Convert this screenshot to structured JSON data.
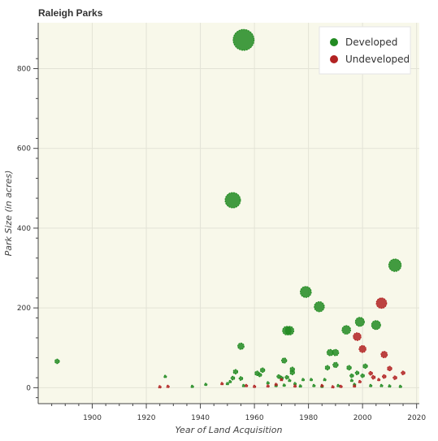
{
  "chart_data": {
    "type": "scatter",
    "title": "Raleigh Parks",
    "xlabel": "Year of Land Acquisition",
    "ylabel": "Park Size (in acres)",
    "xlim": [
      1880,
      2021
    ],
    "ylim": [
      -40,
      915
    ],
    "x_ticks": [
      1900,
      1920,
      1940,
      1960,
      1980,
      2000,
      2020
    ],
    "y_ticks": [
      0,
      200,
      400,
      600,
      800
    ],
    "grid": true,
    "legend_position": "top-right",
    "colors": {
      "Developed": "#228b22",
      "Undeveloped": "#b22222",
      "background": "#f8f8ea"
    },
    "series": [
      {
        "name": "Developed",
        "points": [
          [
            1887,
            66
          ],
          [
            1927,
            28
          ],
          [
            1937,
            3
          ],
          [
            1942,
            8
          ],
          [
            1950,
            10
          ],
          [
            1951,
            15
          ],
          [
            1952,
            470
          ],
          [
            1952,
            24
          ],
          [
            1953,
            40
          ],
          [
            1955,
            104
          ],
          [
            1955,
            23
          ],
          [
            1956,
            872
          ],
          [
            1956,
            5
          ],
          [
            1961,
            36
          ],
          [
            1962,
            32
          ],
          [
            1963,
            44
          ],
          [
            1965,
            12
          ],
          [
            1968,
            5
          ],
          [
            1969,
            28
          ],
          [
            1970,
            24
          ],
          [
            1971,
            68
          ],
          [
            1971,
            6
          ],
          [
            1972,
            143
          ],
          [
            1972,
            26
          ],
          [
            1973,
            143
          ],
          [
            1973,
            18
          ],
          [
            1974,
            46
          ],
          [
            1974,
            38
          ],
          [
            1975,
            10
          ],
          [
            1977,
            4
          ],
          [
            1978,
            20
          ],
          [
            1979,
            240
          ],
          [
            1981,
            20
          ],
          [
            1982,
            5
          ],
          [
            1984,
            203
          ],
          [
            1985,
            3
          ],
          [
            1986,
            20
          ],
          [
            1987,
            50
          ],
          [
            1988,
            88
          ],
          [
            1990,
            88
          ],
          [
            1990,
            57
          ],
          [
            1991,
            5
          ],
          [
            1994,
            145
          ],
          [
            1995,
            50
          ],
          [
            1996,
            30
          ],
          [
            1996,
            18
          ],
          [
            1997,
            8
          ],
          [
            1998,
            37
          ],
          [
            1999,
            165
          ],
          [
            2000,
            30
          ],
          [
            2001,
            54
          ],
          [
            2003,
            5
          ],
          [
            2005,
            157
          ],
          [
            2007,
            5
          ],
          [
            2010,
            4
          ],
          [
            2012,
            307
          ],
          [
            2014,
            3
          ]
        ],
        "sizes": [
          3,
          1,
          1,
          1,
          1,
          1,
          35,
          2,
          3,
          6,
          2,
          65,
          1,
          3,
          2,
          3,
          1,
          1,
          2,
          2,
          4,
          1,
          11,
          2,
          11,
          1,
          3,
          3,
          1,
          1,
          1,
          18,
          1,
          1,
          15,
          1,
          1,
          3,
          6,
          6,
          4,
          1,
          11,
          3,
          2,
          1,
          1,
          2,
          12,
          2,
          3,
          1,
          12,
          1,
          1,
          23,
          1
        ]
      },
      {
        "name": "Undeveloped",
        "points": [
          [
            1925,
            2
          ],
          [
            1928,
            3
          ],
          [
            1948,
            10
          ],
          [
            1957,
            5
          ],
          [
            1960,
            3
          ],
          [
            1965,
            4
          ],
          [
            1968,
            8
          ],
          [
            1970,
            20
          ],
          [
            1975,
            4
          ],
          [
            1985,
            5
          ],
          [
            1989,
            2
          ],
          [
            1992,
            3
          ],
          [
            1997,
            4
          ],
          [
            1998,
            128
          ],
          [
            1999,
            15
          ],
          [
            2000,
            97
          ],
          [
            2003,
            36
          ],
          [
            2004,
            26
          ],
          [
            2006,
            20
          ],
          [
            2007,
            212
          ],
          [
            2008,
            83
          ],
          [
            2008,
            28
          ],
          [
            2010,
            48
          ],
          [
            2012,
            25
          ],
          [
            2015,
            37
          ]
        ],
        "sizes": [
          1,
          1,
          1,
          1,
          1,
          1,
          1,
          1,
          1,
          1,
          1,
          1,
          1,
          9,
          1,
          7,
          2,
          2,
          1,
          16,
          6,
          2,
          3,
          2,
          2
        ]
      }
    ]
  }
}
